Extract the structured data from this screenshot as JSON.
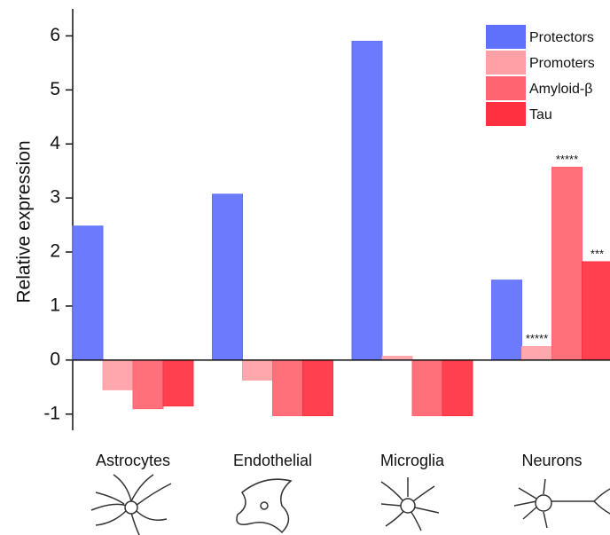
{
  "chart_data": {
    "type": "bar",
    "y_label": "Relative expression",
    "categories": [
      "Astrocytes",
      "Endothelial",
      "Microglia",
      "Neurons"
    ],
    "series": [
      {
        "name": "Protectors",
        "color": "#5f70fb",
        "values": [
          2.48,
          3.07,
          5.9,
          1.48
        ],
        "significance": [
          null,
          null,
          null,
          null
        ]
      },
      {
        "name": "Promoters",
        "color": "#ff9fa6",
        "values": [
          -0.55,
          -0.37,
          0.07,
          0.25
        ],
        "significance": [
          null,
          null,
          null,
          "*****"
        ]
      },
      {
        "name": "Amyloid-β",
        "color": "#ff6470",
        "values": [
          -0.9,
          -1.03,
          -1.03,
          3.57
        ],
        "significance": [
          null,
          null,
          null,
          "*****"
        ]
      },
      {
        "name": "Tau",
        "color": "#ff3040",
        "values": [
          -0.85,
          -1.03,
          -1.03,
          1.82
        ],
        "significance": [
          null,
          null,
          null,
          "***"
        ]
      }
    ],
    "ylim": [
      -1.3,
      6.5
    ],
    "yticks": [
      -1,
      0,
      1,
      2,
      3,
      4,
      5,
      6
    ],
    "legend": "top-right"
  }
}
